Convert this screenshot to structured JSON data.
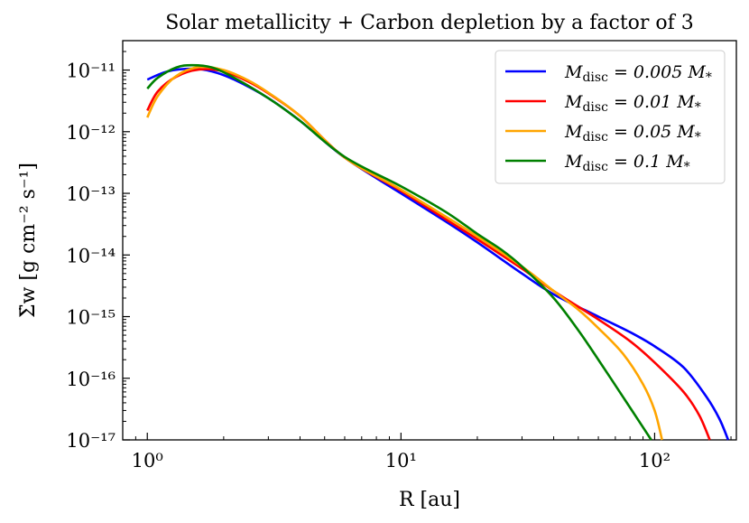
{
  "chart_data": {
    "type": "line",
    "title": "Solar metallicity + Carbon depletion by a factor of 3",
    "xlabel": "R [au]",
    "ylabel": "Σ̇w [g cm⁻² s⁻¹]",
    "xscale": "log",
    "yscale": "log",
    "xlim": [
      0.8,
      210
    ],
    "ylim": [
      1e-17,
      3e-11
    ],
    "xticks": [
      {
        "value": 1,
        "label": "10⁰"
      },
      {
        "value": 10,
        "label": "10¹"
      },
      {
        "value": 100,
        "label": "10²"
      }
    ],
    "yticks": [
      {
        "value": 1e-11,
        "label": "10⁻¹¹"
      },
      {
        "value": 1e-12,
        "label": "10⁻¹²"
      },
      {
        "value": 1e-13,
        "label": "10⁻¹³"
      },
      {
        "value": 1e-14,
        "label": "10⁻¹⁴"
      },
      {
        "value": 1e-15,
        "label": "10⁻¹⁵"
      },
      {
        "value": 1e-16,
        "label": "10⁻¹⁶"
      },
      {
        "value": 1e-17,
        "label": "10⁻¹⁷"
      }
    ],
    "legend_position": "top-right",
    "series": [
      {
        "name": "Mdisc = 0.005 M*",
        "legend_main": "M",
        "legend_sub": "disc",
        "legend_rest": " = 0.005 M",
        "legend_star": "*",
        "color": "#0000ff",
        "x": [
          1.0,
          1.2,
          1.5,
          1.8,
          2.2,
          3.0,
          4.0,
          6.0,
          10,
          15,
          20,
          30,
          40,
          60,
          80,
          100,
          130,
          160,
          180,
          195
        ],
        "y": [
          7e-12,
          9.5e-12,
          1.05e-11,
          9.5e-12,
          7e-12,
          3.5e-12,
          1.5e-12,
          3.8e-13,
          1e-13,
          3.5e-14,
          1.6e-14,
          5e-15,
          2.3e-15,
          1e-15,
          5.6e-16,
          3.3e-16,
          1.5e-16,
          5e-17,
          2.2e-17,
          1e-17
        ]
      },
      {
        "name": "Mdisc = 0.01 M*",
        "legend_main": "M",
        "legend_sub": "disc",
        "legend_rest": " = 0.01 M",
        "legend_star": "*",
        "color": "#ff0000",
        "x": [
          1.0,
          1.1,
          1.3,
          1.6,
          2.0,
          2.5,
          3.0,
          4.0,
          6.0,
          10,
          15,
          20,
          30,
          40,
          60,
          80,
          100,
          130,
          150,
          165
        ],
        "y": [
          2.2e-12,
          4.5e-12,
          7.8e-12,
          1.02e-11,
          9.5e-12,
          6.5e-12,
          4.2e-12,
          1.8e-12,
          3.8e-13,
          1.1e-13,
          3.8e-14,
          1.8e-14,
          6e-15,
          2.6e-15,
          9e-16,
          4e-16,
          1.8e-16,
          6e-17,
          2.5e-17,
          1e-17
        ]
      },
      {
        "name": "Mdisc = 0.05 M*",
        "legend_main": "M",
        "legend_sub": "disc",
        "legend_rest": " = 0.05 M",
        "legend_star": "*",
        "color": "#ffa500",
        "x": [
          1.0,
          1.1,
          1.3,
          1.6,
          2.0,
          2.5,
          3.0,
          4.0,
          6.0,
          10,
          15,
          20,
          30,
          40,
          50,
          60,
          75,
          90,
          100,
          107
        ],
        "y": [
          1.7e-12,
          3.8e-12,
          8e-12,
          1.12e-11,
          1e-11,
          6.8e-12,
          4.3e-12,
          1.8e-12,
          3.8e-13,
          1.15e-13,
          4.2e-14,
          2e-14,
          6.5e-15,
          2.6e-15,
          1.3e-15,
          6.5e-16,
          2.5e-16,
          8e-17,
          3e-17,
          1e-17
        ]
      },
      {
        "name": "Mdisc = 0.1 M*",
        "legend_main": "M",
        "legend_sub": "disc",
        "legend_rest": " = 0.1 M",
        "legend_star": "*",
        "color": "#008000",
        "x": [
          1.0,
          1.1,
          1.3,
          1.5,
          1.8,
          2.2,
          3.0,
          4.0,
          6.0,
          10,
          15,
          20,
          25,
          30,
          40,
          50,
          60,
          75,
          90,
          97
        ],
        "y": [
          5e-12,
          7.5e-12,
          1.1e-11,
          1.2e-11,
          1.1e-11,
          7.5e-12,
          3.5e-12,
          1.5e-12,
          3.9e-13,
          1.3e-13,
          5e-14,
          2.2e-14,
          1.2e-14,
          6.5e-15,
          2e-15,
          6e-16,
          2e-16,
          5e-17,
          1.6e-17,
          1e-17
        ]
      }
    ]
  }
}
